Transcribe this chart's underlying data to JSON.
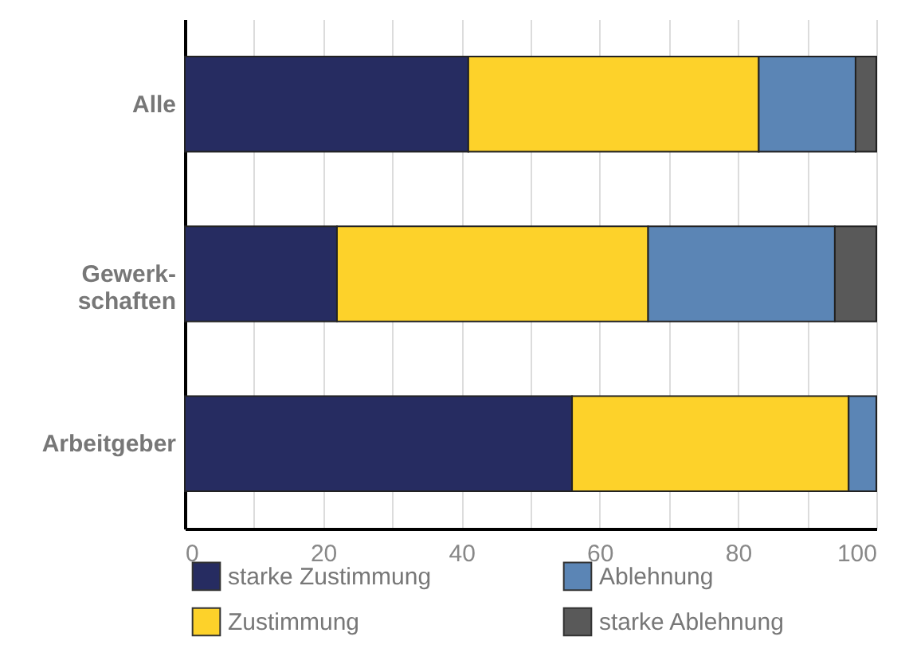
{
  "chart_data": {
    "type": "bar",
    "orientation": "horizontal",
    "stacked": true,
    "categories": [
      "Alle",
      "Gewerk-schaften",
      "Arbeitgeber"
    ],
    "series": [
      {
        "name": "starke Zustimmung",
        "color": "#262c61",
        "values": [
          41,
          22,
          56
        ]
      },
      {
        "name": "Zustimmung",
        "color": "#fdd22a",
        "values": [
          42,
          45,
          40
        ]
      },
      {
        "name": "Ablehnung",
        "color": "#5b85b5",
        "values": [
          14,
          27,
          4
        ]
      },
      {
        "name": "starke Ablehnung",
        "color": "#595959",
        "values": [
          3,
          6,
          0
        ]
      }
    ],
    "xlim": [
      0,
      100
    ],
    "xticks": [
      0,
      {
        "value": 10,
        "label": null
      },
      20,
      {
        "value": 30,
        "label": null
      },
      40,
      {
        "value": 50,
        "label": null
      },
      60,
      {
        "value": 70,
        "label": null
      },
      80,
      {
        "value": 90,
        "label": null
      },
      100
    ],
    "grid": "x",
    "legend": "bottom"
  }
}
